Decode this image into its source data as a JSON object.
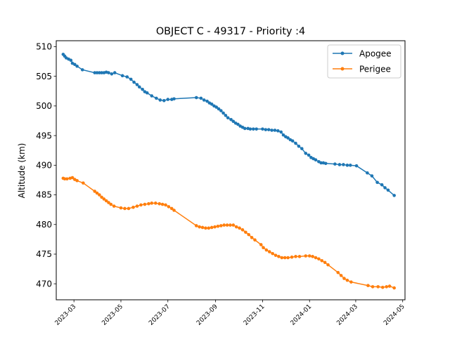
{
  "chart_data": {
    "type": "line",
    "title": "OBJECT C - 49317 - Priority :4",
    "xlabel": "",
    "ylabel": "Altitude (km)",
    "ylim": [
      467.3,
      511.0
    ],
    "xlim": [
      "2023-02-06",
      "2024-05-04"
    ],
    "grid": false,
    "legend_position": "top-right",
    "xticks": [
      "2023-03",
      "2023-05",
      "2023-07",
      "2023-09",
      "2023-11",
      "2024-01",
      "2024-03",
      "2024-05"
    ],
    "yticks": [
      470,
      475,
      480,
      485,
      490,
      495,
      500,
      505,
      510
    ],
    "series": [
      {
        "name": "Apogee",
        "color": "#1f77b4",
        "points": [
          [
            "2023-02-15",
            508.7
          ],
          [
            "2023-02-17",
            508.4
          ],
          [
            "2023-02-19",
            508.1
          ],
          [
            "2023-02-22",
            507.9
          ],
          [
            "2023-02-25",
            507.7
          ],
          [
            "2023-02-27",
            507.2
          ],
          [
            "2023-03-02",
            507.0
          ],
          [
            "2023-03-05",
            506.7
          ],
          [
            "2023-03-12",
            506.1
          ],
          [
            "2023-03-28",
            505.6
          ],
          [
            "2023-03-31",
            505.6
          ],
          [
            "2023-04-03",
            505.6
          ],
          [
            "2023-04-06",
            505.6
          ],
          [
            "2023-04-09",
            505.6
          ],
          [
            "2023-04-12",
            505.7
          ],
          [
            "2023-04-15",
            505.6
          ],
          [
            "2023-04-19",
            505.4
          ],
          [
            "2023-04-23",
            505.6
          ],
          [
            "2023-05-03",
            505.1
          ],
          [
            "2023-05-09",
            504.9
          ],
          [
            "2023-05-14",
            504.5
          ],
          [
            "2023-05-18",
            504.0
          ],
          [
            "2023-05-22",
            503.6
          ],
          [
            "2023-05-25",
            503.2
          ],
          [
            "2023-05-29",
            502.8
          ],
          [
            "2023-06-01",
            502.4
          ],
          [
            "2023-06-04",
            502.2
          ],
          [
            "2023-06-10",
            501.7
          ],
          [
            "2023-06-16",
            501.3
          ],
          [
            "2023-06-21",
            501.0
          ],
          [
            "2023-06-26",
            500.9
          ],
          [
            "2023-07-01",
            501.1
          ],
          [
            "2023-07-06",
            501.1
          ],
          [
            "2023-07-09",
            501.2
          ],
          [
            "2023-08-07",
            501.4
          ],
          [
            "2023-08-13",
            501.3
          ],
          [
            "2023-08-17",
            501.0
          ],
          [
            "2023-08-21",
            500.8
          ],
          [
            "2023-08-24",
            500.5
          ],
          [
            "2023-08-27",
            500.3
          ],
          [
            "2023-08-30",
            500.0
          ],
          [
            "2023-09-02",
            499.8
          ],
          [
            "2023-09-05",
            499.5
          ],
          [
            "2023-09-08",
            499.2
          ],
          [
            "2023-09-11",
            498.8
          ],
          [
            "2023-09-14",
            498.4
          ],
          [
            "2023-09-17",
            498.0
          ],
          [
            "2023-09-21",
            497.7
          ],
          [
            "2023-09-24",
            497.4
          ],
          [
            "2023-09-27",
            497.1
          ],
          [
            "2023-09-30",
            496.9
          ],
          [
            "2023-10-03",
            496.6
          ],
          [
            "2023-10-06",
            496.4
          ],
          [
            "2023-10-09",
            496.2
          ],
          [
            "2023-10-13",
            496.2
          ],
          [
            "2023-10-16",
            496.1
          ],
          [
            "2023-10-20",
            496.1
          ],
          [
            "2023-10-24",
            496.1
          ],
          [
            "2023-11-01",
            496.1
          ],
          [
            "2023-11-05",
            496.0
          ],
          [
            "2023-11-09",
            496.0
          ],
          [
            "2023-11-13",
            495.9
          ],
          [
            "2023-11-17",
            495.9
          ],
          [
            "2023-11-21",
            495.8
          ],
          [
            "2023-11-25",
            495.6
          ],
          [
            "2023-11-28",
            495.1
          ],
          [
            "2023-12-01",
            494.8
          ],
          [
            "2023-12-04",
            494.6
          ],
          [
            "2023-12-07",
            494.3
          ],
          [
            "2023-12-10",
            494.1
          ],
          [
            "2023-12-14",
            493.7
          ],
          [
            "2023-12-18",
            493.2
          ],
          [
            "2023-12-22",
            492.8
          ],
          [
            "2023-12-27",
            492.0
          ],
          [
            "2023-12-31",
            491.7
          ],
          [
            "2024-01-03",
            491.3
          ],
          [
            "2024-01-06",
            491.1
          ],
          [
            "2024-01-09",
            490.9
          ],
          [
            "2024-01-13",
            490.6
          ],
          [
            "2024-01-16",
            490.4
          ],
          [
            "2024-01-19",
            490.4
          ],
          [
            "2024-01-22",
            490.3
          ],
          [
            "2024-02-03",
            490.2
          ],
          [
            "2024-02-09",
            490.1
          ],
          [
            "2024-02-14",
            490.1
          ],
          [
            "2024-02-19",
            490.0
          ],
          [
            "2024-02-23",
            490.0
          ],
          [
            "2024-03-02",
            489.9
          ],
          [
            "2024-03-16",
            488.7
          ],
          [
            "2024-03-22",
            488.2
          ],
          [
            "2024-03-29",
            487.1
          ],
          [
            "2024-04-04",
            486.7
          ],
          [
            "2024-04-08",
            486.2
          ],
          [
            "2024-04-12",
            485.8
          ],
          [
            "2024-04-20",
            484.9
          ]
        ]
      },
      {
        "name": "Perigee",
        "color": "#ff7f0e",
        "points": [
          [
            "2023-02-15",
            487.8
          ],
          [
            "2023-02-17",
            487.7
          ],
          [
            "2023-02-20",
            487.7
          ],
          [
            "2023-02-24",
            487.8
          ],
          [
            "2023-02-27",
            487.9
          ],
          [
            "2023-03-02",
            487.6
          ],
          [
            "2023-03-05",
            487.4
          ],
          [
            "2023-03-13",
            487.0
          ],
          [
            "2023-03-28",
            485.6
          ],
          [
            "2023-03-31",
            485.3
          ],
          [
            "2023-04-03",
            485.0
          ],
          [
            "2023-04-06",
            484.6
          ],
          [
            "2023-04-09",
            484.3
          ],
          [
            "2023-04-12",
            484.0
          ],
          [
            "2023-04-15",
            483.7
          ],
          [
            "2023-04-18",
            483.4
          ],
          [
            "2023-04-22",
            483.1
          ],
          [
            "2023-05-01",
            482.8
          ],
          [
            "2023-05-06",
            482.7
          ],
          [
            "2023-05-11",
            482.7
          ],
          [
            "2023-05-17",
            482.9
          ],
          [
            "2023-05-22",
            483.1
          ],
          [
            "2023-05-27",
            483.3
          ],
          [
            "2023-06-01",
            483.4
          ],
          [
            "2023-06-06",
            483.5
          ],
          [
            "2023-06-10",
            483.6
          ],
          [
            "2023-06-15",
            483.6
          ],
          [
            "2023-06-20",
            483.5
          ],
          [
            "2023-06-24",
            483.4
          ],
          [
            "2023-06-28",
            483.3
          ],
          [
            "2023-07-02",
            483.0
          ],
          [
            "2023-07-06",
            482.7
          ],
          [
            "2023-07-09",
            482.4
          ],
          [
            "2023-08-07",
            479.8
          ],
          [
            "2023-08-11",
            479.6
          ],
          [
            "2023-08-15",
            479.5
          ],
          [
            "2023-08-19",
            479.4
          ],
          [
            "2023-08-23",
            479.4
          ],
          [
            "2023-08-27",
            479.5
          ],
          [
            "2023-08-31",
            479.6
          ],
          [
            "2023-09-04",
            479.7
          ],
          [
            "2023-09-08",
            479.8
          ],
          [
            "2023-09-12",
            479.9
          ],
          [
            "2023-09-16",
            479.9
          ],
          [
            "2023-09-20",
            479.9
          ],
          [
            "2023-09-24",
            479.9
          ],
          [
            "2023-09-28",
            479.6
          ],
          [
            "2023-10-02",
            479.4
          ],
          [
            "2023-10-06",
            479.1
          ],
          [
            "2023-10-10",
            478.7
          ],
          [
            "2023-10-14",
            478.3
          ],
          [
            "2023-10-18",
            477.8
          ],
          [
            "2023-10-22",
            477.4
          ],
          [
            "2023-10-30",
            476.6
          ],
          [
            "2023-11-02",
            476.1
          ],
          [
            "2023-11-06",
            475.7
          ],
          [
            "2023-11-10",
            475.4
          ],
          [
            "2023-11-14",
            475.1
          ],
          [
            "2023-11-18",
            474.8
          ],
          [
            "2023-11-22",
            474.6
          ],
          [
            "2023-11-26",
            474.4
          ],
          [
            "2023-11-30",
            474.4
          ],
          [
            "2023-12-04",
            474.4
          ],
          [
            "2023-12-09",
            474.5
          ],
          [
            "2023-12-14",
            474.6
          ],
          [
            "2023-12-19",
            474.6
          ],
          [
            "2023-12-27",
            474.7
          ],
          [
            "2024-01-01",
            474.7
          ],
          [
            "2024-01-05",
            474.6
          ],
          [
            "2024-01-09",
            474.4
          ],
          [
            "2024-01-13",
            474.2
          ],
          [
            "2024-01-17",
            473.9
          ],
          [
            "2024-01-21",
            473.6
          ],
          [
            "2024-01-25",
            473.2
          ],
          [
            "2024-02-07",
            471.9
          ],
          [
            "2024-02-11",
            471.4
          ],
          [
            "2024-02-15",
            470.9
          ],
          [
            "2024-02-19",
            470.6
          ],
          [
            "2024-02-24",
            470.3
          ],
          [
            "2024-03-17",
            469.7
          ],
          [
            "2024-03-23",
            469.5
          ],
          [
            "2024-03-30",
            469.5
          ],
          [
            "2024-04-05",
            469.4
          ],
          [
            "2024-04-10",
            469.5
          ],
          [
            "2024-04-14",
            469.6
          ],
          [
            "2024-04-20",
            469.3
          ]
        ]
      }
    ]
  }
}
